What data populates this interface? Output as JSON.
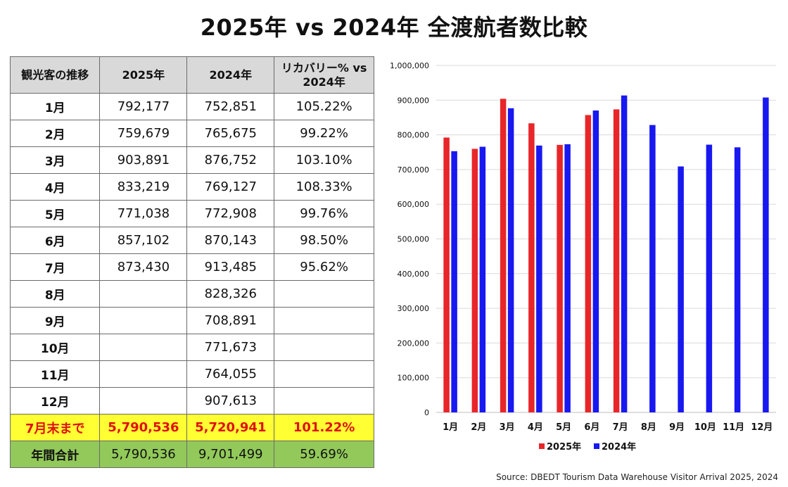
{
  "title": "2025年 vs 2024年 全渡航者数比較",
  "table": {
    "headers": [
      "観光客の推移",
      "2025年",
      "2024年",
      "リカバリー% vs 2024年"
    ],
    "rows": [
      [
        "1月",
        "792,177",
        "752,851",
        "105.22%"
      ],
      [
        "2月",
        "759,679",
        "765,675",
        "99.22%"
      ],
      [
        "3月",
        "903,891",
        "876,752",
        "103.10%"
      ],
      [
        "4月",
        "833,219",
        "769,127",
        "108.33%"
      ],
      [
        "5月",
        "771,038",
        "772,908",
        "99.76%"
      ],
      [
        "6月",
        "857,102",
        "870,143",
        "98.50%"
      ],
      [
        "7月",
        "873,430",
        "913,485",
        "95.62%"
      ],
      [
        "8月",
        "",
        "828,326",
        ""
      ],
      [
        "9月",
        "",
        "708,891",
        ""
      ],
      [
        "10月",
        "",
        "771,673",
        ""
      ],
      [
        "11月",
        "",
        "764,055",
        ""
      ],
      [
        "12月",
        "",
        "907,613",
        ""
      ]
    ],
    "ytd": [
      "7月末まで",
      "5,790,536",
      "5,720,941",
      "101.22%"
    ],
    "annual": [
      "年間合計",
      "5,790,536",
      "9,701,499",
      "59.69%"
    ]
  },
  "chart_data": {
    "type": "bar",
    "categories": [
      "1月",
      "2月",
      "3月",
      "4月",
      "5月",
      "6月",
      "7月",
      "8月",
      "9月",
      "10月",
      "11月",
      "12月"
    ],
    "series": [
      {
        "name": "2025年",
        "color": "#e8262a",
        "values": [
          792177,
          759679,
          903891,
          833219,
          771038,
          857102,
          873430,
          null,
          null,
          null,
          null,
          null
        ]
      },
      {
        "name": "2024年",
        "color": "#1818f0",
        "values": [
          752851,
          765675,
          876752,
          769127,
          772908,
          870143,
          913485,
          828326,
          708891,
          771673,
          764055,
          907613
        ]
      }
    ],
    "ylim": [
      0,
      1000000
    ],
    "yticks": [
      "0",
      "100,000",
      "200,000",
      "300,000",
      "400,000",
      "500,000",
      "600,000",
      "700,000",
      "800,000",
      "900,000",
      "1,000,000"
    ],
    "grid": true,
    "legend": "bottom"
  },
  "source": "Source: DBEDT Tourism Data Warehouse Visitor Arrival 2025, 2024"
}
